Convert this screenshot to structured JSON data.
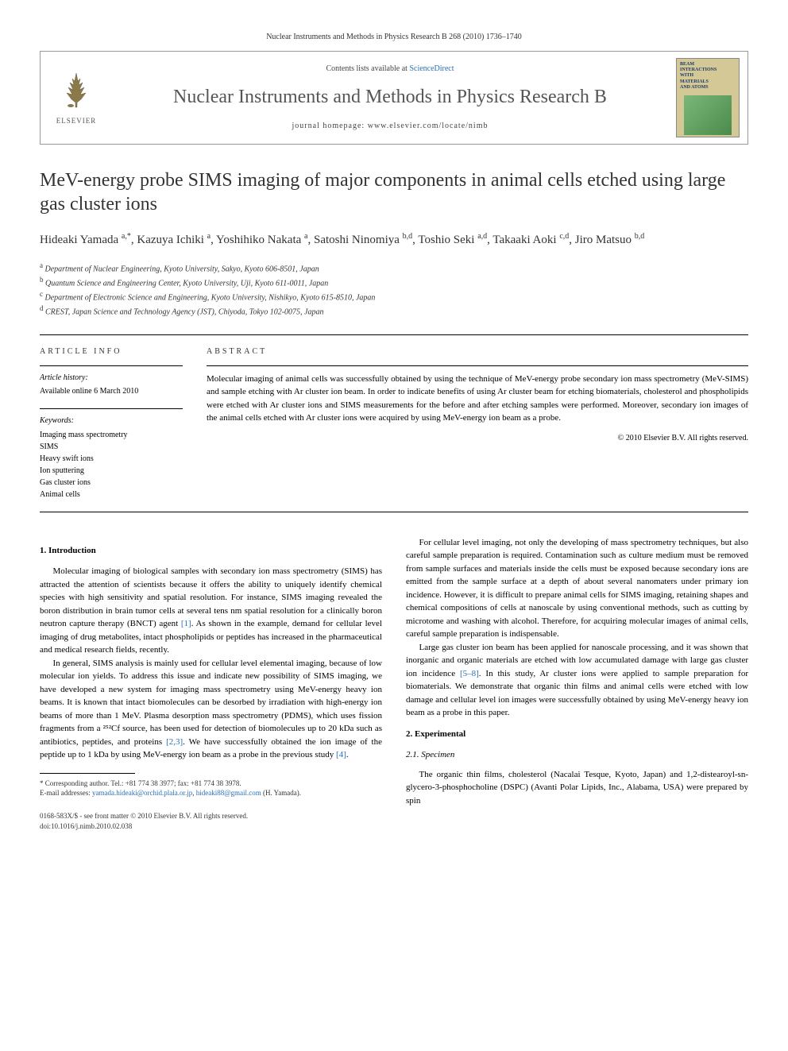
{
  "page_header": "Nuclear Instruments and Methods in Physics Research B 268 (2010) 1736–1740",
  "masthead": {
    "publisher_logo_label": "ELSEVIER",
    "contents_prefix": "Contents lists available at ",
    "contents_link": "ScienceDirect",
    "journal_name": "Nuclear Instruments and Methods in Physics Research B",
    "homepage_label": "journal homepage: ",
    "homepage_url": "www.elsevier.com/locate/nimb",
    "cover": {
      "line1": "BEAM",
      "line2": "INTERACTIONS",
      "line3": "WITH",
      "line4": "MATERIALS",
      "line5": "AND ATOMS"
    }
  },
  "title": "MeV-energy probe SIMS imaging of major components in animal cells etched using large gas cluster ions",
  "authors_html": "Hideaki Yamada <sup>a,*</sup>, Kazuya Ichiki <sup>a</sup>, Yoshihiko Nakata <sup>a</sup>, Satoshi Ninomiya <sup>b,d</sup>, Toshio Seki <sup>a,d</sup>, Takaaki Aoki <sup>c,d</sup>, Jiro Matsuo <sup>b,d</sup>",
  "affiliations": [
    {
      "sup": "a",
      "text": "Department of Nuclear Engineering, Kyoto University, Sakyo, Kyoto 606-8501, Japan"
    },
    {
      "sup": "b",
      "text": "Quantum Science and Engineering Center, Kyoto University, Uji, Kyoto 611-0011, Japan"
    },
    {
      "sup": "c",
      "text": "Department of Electronic Science and Engineering, Kyoto University, Nishikyo, Kyoto 615-8510, Japan"
    },
    {
      "sup": "d",
      "text": "CREST, Japan Science and Technology Agency (JST), Chiyoda, Tokyo 102-0075, Japan"
    }
  ],
  "info": {
    "heading": "ARTICLE INFO",
    "history_label": "Article history:",
    "history_value": "Available online 6 March 2010",
    "keywords_label": "Keywords:",
    "keywords": [
      "Imaging mass spectrometry",
      "SIMS",
      "Heavy swift ions",
      "Ion sputtering",
      "Gas cluster ions",
      "Animal cells"
    ]
  },
  "abstract": {
    "heading": "ABSTRACT",
    "text": "Molecular imaging of animal cells was successfully obtained by using the technique of MeV-energy probe secondary ion mass spectrometry (MeV-SIMS) and sample etching with Ar cluster ion beam. In order to indicate benefits of using Ar cluster beam for etching biomaterials, cholesterol and phospholipids were etched with Ar cluster ions and SIMS measurements for the before and after etching samples were performed. Moreover, secondary ion images of the animal cells etched with Ar cluster ions were acquired by using MeV-energy ion beam as a probe.",
    "copyright": "© 2010 Elsevier B.V. All rights reserved."
  },
  "body": {
    "intro_heading": "1. Introduction",
    "p1": "Molecular imaging of biological samples with secondary ion mass spectrometry (SIMS) has attracted the attention of scientists because it offers the ability to uniquely identify chemical species with high sensitivity and spatial resolution. For instance, SIMS imaging revealed the boron distribution in brain tumor cells at several tens nm spatial resolution for a clinically boron neutron capture therapy (BNCT) agent ",
    "p1_ref": "[1]",
    "p1b": ". As shown in the example, demand for cellular level imaging of drug metabolites, intact phospholipids or peptides has increased in the pharmaceutical and medical research fields, recently.",
    "p2": "In general, SIMS analysis is mainly used for cellular level elemental imaging, because of low molecular ion yields. To address this issue and indicate new possibility of SIMS imaging, we have developed a new system for imaging mass spectrometry using MeV-energy heavy ion beams. It is known that intact biomolecules can be desorbed by irradiation with high-energy ion beams of more than 1 MeV. Plasma desorption mass spectrometry (PDMS), which uses fission fragments from a ²⁵²Cf source, has been used for detection of biomolecules up to 20 kDa such as antibiotics, peptides, and proteins ",
    "p2_ref": "[2,3]",
    "p2b": ". We have successfully obtained the ion image of the peptide up to 1 kDa by using MeV-energy ion beam as a probe in the previous study ",
    "p2_ref2": "[4]",
    "p2c": ".",
    "p3": "For cellular level imaging, not only the developing of mass spectrometry techniques, but also careful sample preparation is required. Contamination such as culture medium must be removed from sample surfaces and materials inside the cells must be exposed because secondary ions are emitted from the sample surface at a depth of about several nanomaters under primary ion incidence. However, it is difficult to prepare animal cells for SIMS imaging, retaining shapes and chemical compositions of cells at nanoscale by using conventional methods, such as cutting by microtome and washing with alcohol. Therefore, for acquiring molecular images of animal cells, careful sample preparation is indispensable.",
    "p4": "Large gas cluster ion beam has been applied for nanoscale processing, and it was shown that inorganic and organic materials are etched with low accumulated damage with large gas cluster ion incidence ",
    "p4_ref": "[5–8]",
    "p4b": ". In this study, Ar cluster ions were applied to sample preparation for biomaterials. We demonstrate that organic thin films and animal cells were etched with low damage and cellular level ion images were successfully obtained by using MeV-energy heavy ion beam as a probe in this paper.",
    "exp_heading": "2. Experimental",
    "spec_heading": "2.1. Specimen",
    "p5": "The organic thin films, cholesterol (Nacalai Tesque, Kyoto, Japan) and 1,2-distearoyl-sn-glycero-3-phosphocholine (DSPC) (Avanti Polar Lipids, Inc., Alabama, USA) were prepared by spin"
  },
  "footnotes": {
    "corresponding": "* Corresponding author. Tel.: +81 774 38 3977; fax: +81 774 38 3978.",
    "email_label": "E-mail addresses: ",
    "email1": "yamada.hideaki@orchid.plala.or.jp",
    "email_sep": ", ",
    "email2": "hideaki88@gmail.com",
    "email_tail": " (H. Yamada)."
  },
  "footer": {
    "issn": "0168-583X/$ - see front matter © 2010 Elsevier B.V. All rights reserved.",
    "doi": "doi:10.1016/j.nimb.2010.02.038"
  },
  "colors": {
    "link": "#2a6fb5",
    "text": "#333333",
    "border": "#999999",
    "cover_bg": "#d4c896",
    "cover_text": "#1a3a6a"
  }
}
